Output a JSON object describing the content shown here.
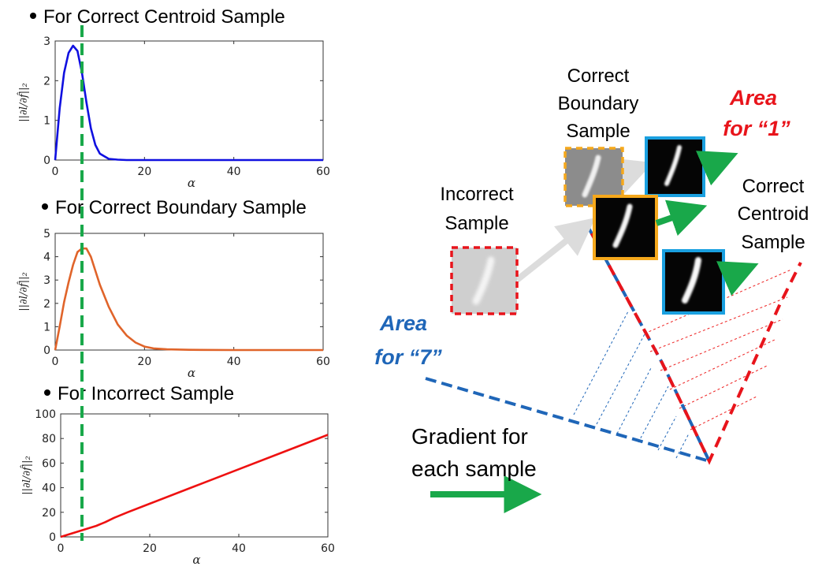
{
  "colors": {
    "centroid": "#1010e0",
    "boundary": "#e0642a",
    "incorrect": "#ee1111",
    "guide": "#19a84a",
    "area1": "#e8141b",
    "area7": "#1f66b8",
    "gradient": "#19a84a"
  },
  "headings": {
    "centroid": "For Correct Centroid Sample",
    "boundary": "For Correct Boundary Sample",
    "incorrect": "For Incorrect Sample"
  },
  "chart_data": [
    {
      "type": "line",
      "xlabel": "α",
      "ylabel": "||∂l/∂f̂||₂",
      "xlim": [
        0,
        60
      ],
      "ylim": [
        0,
        3
      ],
      "xticks": [
        "0",
        "20",
        "40",
        "60"
      ],
      "yticks": [
        "0",
        "1",
        "2",
        "3"
      ],
      "grid": false,
      "series": [
        {
          "x": [
            0,
            1,
            2,
            3,
            4,
            5,
            6,
            7,
            8,
            9,
            10,
            12,
            14,
            16,
            20,
            30,
            40,
            50,
            60
          ],
          "y": [
            0,
            1.3,
            2.2,
            2.7,
            2.88,
            2.75,
            2.2,
            1.45,
            0.8,
            0.38,
            0.16,
            0.03,
            0.01,
            0,
            0,
            0,
            0,
            0,
            0
          ]
        }
      ]
    },
    {
      "type": "line",
      "xlabel": "α",
      "ylabel": "||∂l/∂f̂||₂",
      "xlim": [
        0,
        60
      ],
      "ylim": [
        0,
        5
      ],
      "xticks": [
        "0",
        "20",
        "40",
        "60"
      ],
      "yticks": [
        "0",
        "1",
        "2",
        "3",
        "4",
        "5"
      ],
      "grid": false,
      "series": [
        {
          "x": [
            0,
            1,
            2,
            3,
            4,
            5,
            6,
            7,
            8,
            9,
            10,
            12,
            14,
            16,
            18,
            20,
            22,
            25,
            30,
            40,
            50,
            60
          ],
          "y": [
            0,
            1.0,
            2.05,
            2.9,
            3.65,
            4.2,
            4.35,
            4.35,
            4.0,
            3.4,
            2.8,
            1.85,
            1.1,
            0.62,
            0.32,
            0.15,
            0.07,
            0.03,
            0.01,
            0,
            0,
            0
          ]
        }
      ]
    },
    {
      "type": "line",
      "xlabel": "α",
      "ylabel": "||∂l/∂f̂||₂",
      "xlim": [
        0,
        60
      ],
      "ylim": [
        0,
        100
      ],
      "xticks": [
        "0",
        "20",
        "40",
        "60"
      ],
      "yticks": [
        "0",
        "20",
        "40",
        "60",
        "80",
        "100"
      ],
      "grid": false,
      "series": [
        {
          "x": [
            0,
            4,
            8,
            10,
            12,
            15,
            20,
            30,
            40,
            50,
            60
          ],
          "y": [
            0,
            4.5,
            9,
            12,
            15.5,
            20,
            27,
            41,
            55,
            69,
            83
          ]
        }
      ]
    }
  ],
  "diagram": {
    "labels": {
      "boundary": [
        "Correct",
        "Boundary",
        "Sample"
      ],
      "incorrect": [
        "Incorrect",
        "Sample"
      ],
      "centroid": [
        "Correct",
        "Centroid",
        "Sample"
      ],
      "area1": [
        "Area",
        "for “1”"
      ],
      "area7": [
        "Area",
        "for “7”"
      ],
      "gradient": [
        "Gradient for",
        "each sample"
      ]
    }
  }
}
